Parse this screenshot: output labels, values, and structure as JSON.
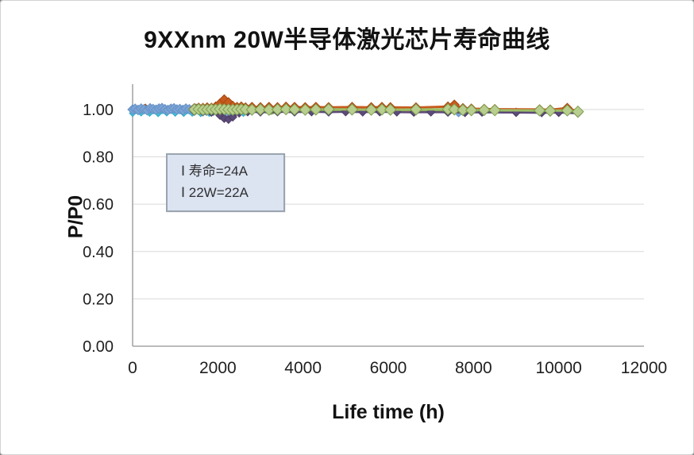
{
  "chart_data": {
    "type": "line",
    "title": "9XXnm 20W半导体激光芯片寿命曲线",
    "xlabel": "Life time  (h)",
    "ylabel": "P/P0",
    "xlim": [
      0,
      12000
    ],
    "ylim": [
      0,
      1.107
    ],
    "x_ticks": [
      0,
      2000,
      4000,
      6000,
      8000,
      10000,
      12000
    ],
    "x_tick_labels": [
      "0",
      "2000",
      "4000",
      "6000",
      "8000",
      "10000",
      "12000"
    ],
    "y_ticks": [
      0,
      0.2,
      0.4,
      0.6,
      0.8,
      1.0
    ],
    "y_tick_labels": [
      "0.00",
      "0.20",
      "0.40",
      "0.60",
      "0.80",
      "1.00"
    ],
    "grid": "horizontal",
    "legend": "none",
    "axis_color": "#a6a6a6",
    "grid_color": "#d9d9d9",
    "text_color": "#1f1f1f",
    "annotation": {
      "lines": [
        "Ⅰ 寿命=24A",
        "Ⅰ 22W=22A"
      ],
      "bg": "#dce3f1",
      "border": "#9aa5b1"
    },
    "series": [
      {
        "name": "chip-cyan",
        "color": "#45bcd9",
        "edge": "#2fa8c8",
        "line_width": 2,
        "marker_size": 4,
        "x": [
          0,
          200,
          400,
          600,
          800,
          1000,
          1200,
          1400,
          1600,
          1800,
          2000,
          2200,
          2400,
          2600
        ],
        "y": [
          0.984,
          0.986,
          0.985,
          0.983,
          0.986,
          0.985,
          0.984,
          0.985,
          0.983,
          0.984,
          0.982,
          0.984,
          0.985,
          0.984
        ]
      },
      {
        "name": "chip-orange-early",
        "color": "#c75b1e",
        "edge": "#a8490f",
        "line_width": 2.5,
        "marker_size": 5,
        "x": [
          200,
          300,
          400
        ],
        "y": [
          1.004,
          1.006,
          1.003
        ]
      },
      {
        "name": "chip-blue",
        "color": "#7ba4d6",
        "edge": "#6690c4",
        "line_width": 2,
        "marker_size": 6,
        "x": [
          0,
          60,
          130,
          200,
          270,
          340,
          410,
          480,
          550,
          620,
          690,
          760,
          830,
          900,
          970,
          1040,
          1110,
          1180,
          1250,
          1330,
          1410,
          1490,
          1570,
          1650,
          1730,
          1810,
          1890,
          1970,
          2050,
          2130,
          2210,
          2290,
          2360
        ],
        "y": [
          1.0,
          1.003,
          0.998,
          1.004,
          1.001,
          0.997,
          1.005,
          1.002,
          0.999,
          1.004,
          1.006,
          1.001,
          0.998,
          1.003,
          1.005,
          1.0,
          1.002,
          0.998,
          1.004,
          1.001,
          0.999,
          1.003,
          1.0,
          0.997,
          0.995,
          0.996,
          0.994,
          0.993,
          0.995,
          0.992,
          0.991,
          0.99,
          0.988
        ]
      },
      {
        "name": "chip-blue-late",
        "color": "#7ba4d6",
        "edge": "#6690c4",
        "line_width": 2,
        "marker_size": 5,
        "x": [
          7650,
          7800
        ],
        "y": [
          0.986,
          0.987
        ]
      },
      {
        "name": "chip-salmon",
        "color": "#e39191",
        "edge": "#d07070",
        "line_width": 2,
        "marker_size": 4,
        "x": [
          1450,
          1650,
          1850,
          2000,
          2100,
          2200,
          2400,
          2600,
          3000,
          3400,
          3800,
          4200,
          4600,
          5000,
          5400,
          5800,
          6200,
          6600,
          7000,
          7400,
          7800,
          8200,
          9000,
          9600,
          10000,
          10450
        ],
        "y": [
          0.996,
          0.998,
          1.004,
          1.012,
          1.018,
          1.006,
          0.998,
          0.996,
          0.995,
          0.996,
          0.995,
          0.994,
          0.995,
          0.996,
          0.995,
          0.994,
          0.995,
          0.994,
          0.995,
          0.996,
          0.993,
          0.992,
          0.993,
          0.992,
          0.991,
          0.988
        ]
      },
      {
        "name": "chip-darkgreen",
        "color": "#7e9b4e",
        "edge": "#7e9b4e",
        "line_width": 2,
        "marker_size": 0,
        "x": [
          1450,
          2000,
          2500,
          2900,
          3100,
          3250,
          3400,
          3600,
          4000,
          4600,
          5200,
          5800,
          6400,
          7000,
          7600,
          8200,
          9000,
          9800,
          10450
        ],
        "y": [
          0.997,
          0.996,
          0.995,
          0.994,
          0.988,
          0.981,
          0.99,
          0.995,
          0.996,
          0.995,
          0.996,
          0.995,
          0.996,
          0.995,
          0.994,
          0.993,
          0.992,
          0.991,
          0.989
        ]
      },
      {
        "name": "chip-purple",
        "color": "#5d4b79",
        "edge": "#4a3b63",
        "line_width": 2.5,
        "marker_size": 5,
        "x": [
          1450,
          1650,
          1850,
          2050,
          2150,
          2250,
          2350,
          2500,
          2700,
          3000,
          3400,
          3800,
          4200,
          4600,
          5000,
          5400,
          5800,
          6200,
          6600,
          7000,
          7400,
          7800,
          8200,
          9000,
          9600,
          10000,
          10450
        ],
        "y": [
          0.992,
          0.99,
          0.988,
          0.975,
          0.962,
          0.958,
          0.968,
          0.985,
          0.99,
          0.989,
          0.99,
          0.989,
          0.99,
          0.989,
          0.99,
          0.989,
          0.99,
          0.989,
          0.988,
          0.989,
          0.988,
          0.987,
          0.988,
          0.987,
          0.986,
          0.987,
          0.984
        ]
      },
      {
        "name": "chip-orange",
        "color": "#c75b1e",
        "edge": "#a8490f",
        "line_width": 3,
        "marker_size": 6,
        "x": [
          1450,
          1550,
          1650,
          1750,
          1850,
          1950,
          2050,
          2150,
          2250,
          2350,
          2450,
          2550,
          2650,
          2800,
          3000,
          3200,
          3400,
          3600,
          3800,
          4050,
          4300,
          4600,
          5150,
          5600,
          5850,
          6050,
          6650,
          7400,
          7550,
          7750,
          7950,
          8250,
          8500,
          9550,
          9800,
          10200,
          10450
        ],
        "y": [
          1.005,
          1.007,
          1.006,
          1.008,
          1.007,
          1.012,
          1.025,
          1.042,
          1.03,
          1.015,
          1.01,
          1.012,
          1.008,
          1.01,
          1.009,
          1.01,
          1.009,
          1.011,
          1.01,
          1.009,
          1.01,
          1.009,
          1.01,
          1.009,
          1.01,
          1.009,
          1.008,
          1.012,
          1.02,
          1.005,
          1.003,
          1.002,
          1.001,
          1.0,
          0.999,
          1.006,
          0.992
        ]
      },
      {
        "name": "chip-green",
        "color": "#b7ce8e",
        "line_color": "#9cbe67",
        "edge": "#7e9e4d",
        "line_width": 3,
        "marker_size": 7,
        "x": [
          1450,
          1550,
          1650,
          1750,
          1850,
          1950,
          2050,
          2150,
          2250,
          2350,
          2450,
          2550,
          2650,
          2800,
          3000,
          3200,
          3400,
          3600,
          3800,
          4050,
          4300,
          4600,
          5150,
          5600,
          5850,
          6050,
          6650,
          7400,
          7550,
          7750,
          7950,
          8250,
          8500,
          9550,
          9800,
          10200,
          10450
        ],
        "y": [
          1.0,
          1.001,
          0.999,
          1.0,
          1.001,
          1.0,
          1.002,
          1.001,
          1.0,
          0.999,
          1.0,
          1.001,
          1.0,
          0.999,
          1.0,
          0.999,
          1.0,
          1.001,
          1.0,
          0.999,
          1.0,
          1.001,
          1.0,
          0.999,
          1.0,
          0.999,
          1.0,
          1.001,
          1.0,
          0.998,
          0.997,
          0.998,
          0.997,
          0.996,
          0.995,
          0.996,
          0.991
        ]
      }
    ]
  }
}
